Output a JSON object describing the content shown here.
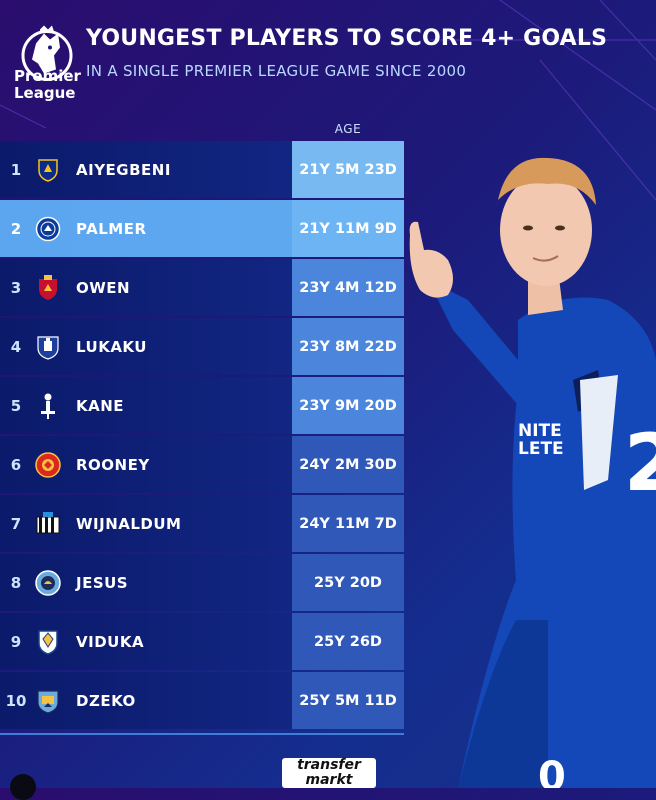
{
  "branding": {
    "logo_line1": "Premier",
    "logo_line2": "League"
  },
  "header": {
    "title": "YOUNGEST PLAYERS TO SCORE 4+ GOALS",
    "subtitle": "IN A SINGLE PREMIER LEAGUE GAME SINCE 2000"
  },
  "table": {
    "age_column_header": "AGE",
    "rows": [
      {
        "rank": "1",
        "name": "AIYEGBENI",
        "age": "21Y 5M 23D",
        "crest": "portsmouth-crest-icon"
      },
      {
        "rank": "2",
        "name": "PALMER",
        "age": "21Y 11M 9D",
        "crest": "chelsea-crest-icon"
      },
      {
        "rank": "3",
        "name": "OWEN",
        "age": "23Y 4M 12D",
        "crest": "liverpool-crest-icon"
      },
      {
        "rank": "4",
        "name": "LUKAKU",
        "age": "23Y 8M 22D",
        "crest": "everton-crest-icon"
      },
      {
        "rank": "5",
        "name": "KANE",
        "age": "23Y 9M 20D",
        "crest": "tottenham-crest-icon"
      },
      {
        "rank": "6",
        "name": "ROONEY",
        "age": "24Y 2M 30D",
        "crest": "man-united-crest-icon"
      },
      {
        "rank": "7",
        "name": "WIJNALDUM",
        "age": "24Y 11M 7D",
        "crest": "newcastle-crest-icon"
      },
      {
        "rank": "8",
        "name": "JESUS",
        "age": "25Y 20D",
        "crest": "man-city-crest-icon"
      },
      {
        "rank": "9",
        "name": "VIDUKA",
        "age": "25Y 26D",
        "crest": "leeds-crest-icon"
      },
      {
        "rank": "10",
        "name": "DZEKO",
        "age": "25Y 5M 11D",
        "crest": "man-city-crest-icon"
      }
    ]
  },
  "footer": {
    "source_logo_line1": "transfer",
    "source_logo_line2": "markt"
  },
  "photo": {
    "shirt_sponsor_line1": "NITE",
    "shirt_sponsor_line2": "LETE"
  },
  "colors": {
    "highlight_row": "#5ba6ef",
    "row_dark": "#0b1a6a",
    "age_cell": "#3a67c9"
  }
}
